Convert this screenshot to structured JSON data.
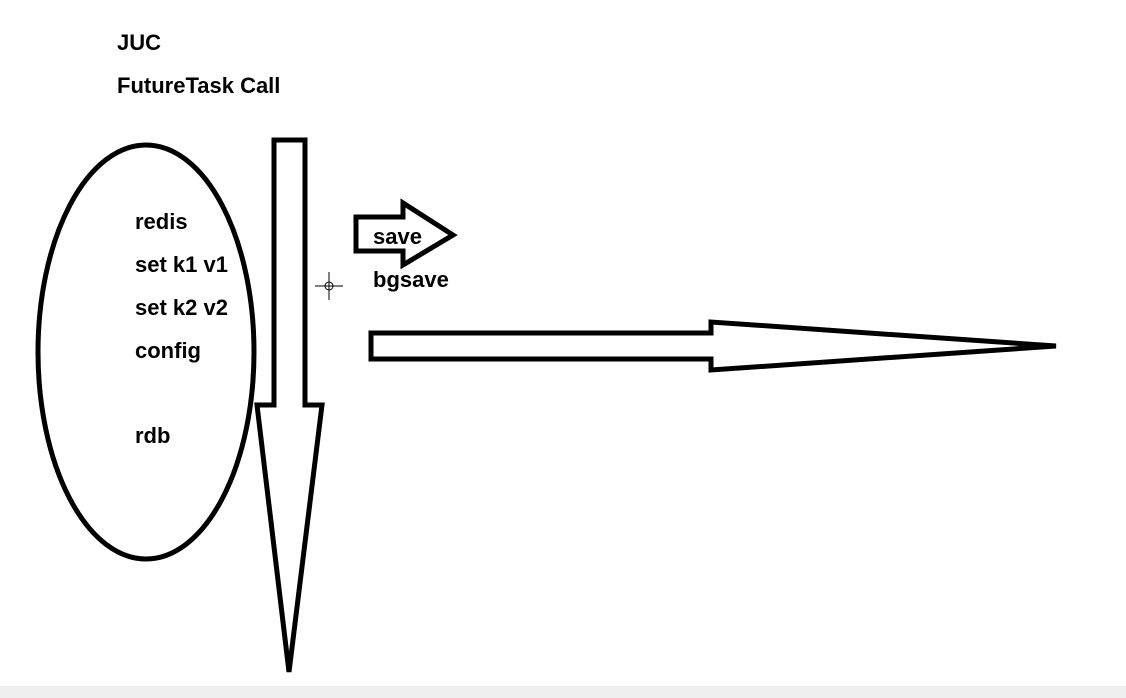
{
  "title": {
    "line1": "JUC",
    "line2": "FutureTask Call"
  },
  "ellipse_items": [
    "redis",
    "set k1 v1",
    "set k2 v2",
    "config",
    "rdb"
  ],
  "commands": {
    "save": "save",
    "bgsave": "bgsave"
  },
  "colors": {
    "ink": "#000000",
    "background": "#ffffff"
  },
  "icons": {
    "cursor": "crosshair-cursor-icon"
  }
}
